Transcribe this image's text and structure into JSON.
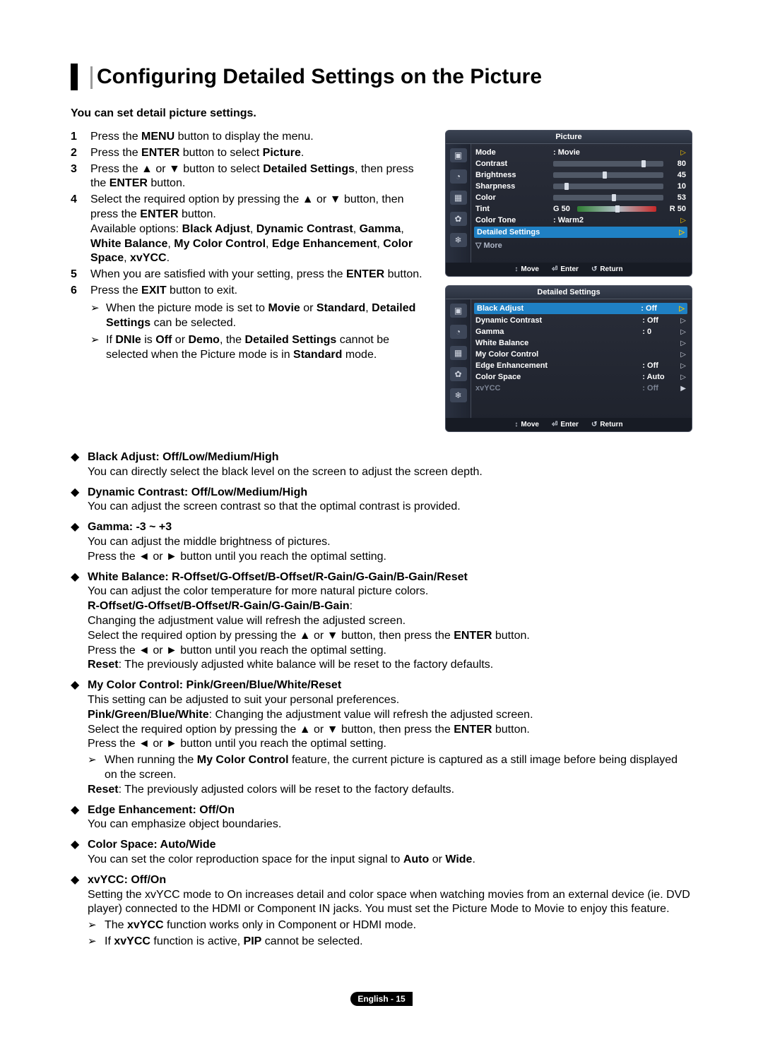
{
  "title": "Configuring Detailed Settings on the Picture",
  "intro": "You can set detail picture settings.",
  "steps": [
    {
      "n": "1",
      "parts": [
        "Press the ",
        [
          "b",
          "MENU"
        ],
        " button to display the menu."
      ]
    },
    {
      "n": "2",
      "parts": [
        "Press the ",
        [
          "b",
          "ENTER"
        ],
        " button to select ",
        [
          "b",
          "Picture"
        ],
        "."
      ]
    },
    {
      "n": "3",
      "parts": [
        "Press the ▲ or ▼ button to select ",
        [
          "b",
          "Detailed Settings"
        ],
        ", then press the ",
        [
          "b",
          "ENTER"
        ],
        " button."
      ]
    },
    {
      "n": "4",
      "parts": [
        "Select the required option by pressing the ▲ or ▼ button, then press the ",
        [
          "b",
          "ENTER"
        ],
        " button.\nAvailable options: ",
        [
          "b",
          "Black Adjust"
        ],
        ", ",
        [
          "b",
          "Dynamic Contrast"
        ],
        ", ",
        [
          "b",
          "Gamma"
        ],
        ", ",
        [
          "b",
          "White Balance"
        ],
        ", ",
        [
          "b",
          "My Color Control"
        ],
        ", ",
        [
          "b",
          "Edge Enhancement"
        ],
        ", ",
        [
          "b",
          "Color Space"
        ],
        ", ",
        [
          "b",
          "xvYCC"
        ],
        "."
      ]
    },
    {
      "n": "5",
      "parts": [
        "When you are satisfied with your setting, press the ",
        [
          "b",
          "ENTER"
        ],
        " button."
      ]
    },
    {
      "n": "6",
      "parts": [
        "Press the ",
        [
          "b",
          "EXIT"
        ],
        " button to exit."
      ]
    }
  ],
  "step_notes": [
    [
      "When the picture mode is set to ",
      [
        "b",
        "Movie"
      ],
      " or ",
      [
        "b",
        "Standard"
      ],
      ", ",
      [
        "b",
        "Detailed Settings"
      ],
      " can be selected."
    ],
    [
      "If ",
      [
        "b",
        "DNIe"
      ],
      " is ",
      [
        "b",
        "Off"
      ],
      " or ",
      [
        "b",
        "Demo"
      ],
      ", the ",
      [
        "b",
        "Detailed Settings"
      ],
      " cannot be selected when the Picture mode is in ",
      [
        "b",
        "Standard"
      ],
      " mode."
    ]
  ],
  "details": [
    {
      "head": "Black Adjust: Off/Low/Medium/High",
      "lines": [
        [
          "You can directly select the black level on the screen to adjust the screen depth."
        ]
      ]
    },
    {
      "head": "Dynamic Contrast: Off/Low/Medium/High",
      "lines": [
        [
          "You can adjust the screen contrast so that the optimal contrast is provided."
        ]
      ]
    },
    {
      "head": "Gamma: -3 ~ +3",
      "lines": [
        [
          "You can adjust the middle brightness of pictures."
        ],
        [
          "Press the ◄ or ► button until you reach the optimal setting."
        ]
      ]
    },
    {
      "head": "White Balance: R-Offset/G-Offset/B-Offset/R-Gain/G-Gain/B-Gain/Reset",
      "lines": [
        [
          "You can adjust the color temperature for more natural picture colors."
        ],
        [
          [
            "b",
            "R-Offset/G-Offset/B-Offset/R-Gain/G-Gain/B-Gain"
          ],
          ":"
        ],
        [
          "Changing the adjustment value will refresh the adjusted screen."
        ],
        [
          "Select the required option by pressing the ▲ or ▼ button, then press the ",
          [
            "b",
            "ENTER"
          ],
          " button."
        ],
        [
          "Press the ◄ or ► button until you reach the optimal setting."
        ],
        [
          [
            "b",
            "Reset"
          ],
          ": The previously adjusted white balance will be reset to the factory defaults."
        ]
      ]
    },
    {
      "head": "My Color Control: Pink/Green/Blue/White/Reset",
      "lines": [
        [
          "This setting can be adjusted to suit your personal preferences."
        ],
        [
          [
            "b",
            "Pink/Green/Blue/White"
          ],
          ": Changing the adjustment value will refresh the adjusted screen."
        ],
        [
          "Select the required option by pressing the ▲ or ▼ button, then press the ",
          [
            "b",
            "ENTER"
          ],
          " button."
        ],
        [
          "Press the ◄ or ► button until you reach the optimal setting."
        ]
      ],
      "notes": [
        [
          "When running the ",
          [
            "b",
            "My Color Control"
          ],
          " feature, the current picture is captured as a still image before being displayed on the screen."
        ]
      ],
      "after": [
        [
          [
            "b",
            "Reset"
          ],
          ": The previously adjusted colors will be reset to the factory defaults."
        ]
      ]
    },
    {
      "head": "Edge Enhancement: Off/On",
      "lines": [
        [
          "You can emphasize object boundaries."
        ]
      ]
    },
    {
      "head": "Color Space: Auto/Wide",
      "lines": [
        [
          "You can set the color reproduction space for the input signal to ",
          [
            "b",
            "Auto"
          ],
          " or ",
          [
            "b",
            "Wide"
          ],
          "."
        ]
      ]
    },
    {
      "head": "xvYCC: Off/On",
      "lines": [
        [
          "Setting the xvYCC mode to On increases detail and color space when watching movies from an external device (ie. DVD player) connected to the HDMI or Component IN jacks. You must set the Picture Mode to Movie to enjoy this feature."
        ]
      ],
      "notes": [
        [
          "The ",
          [
            "b",
            "xvYCC"
          ],
          " function works only in Component or HDMI mode."
        ],
        [
          "If ",
          [
            "b",
            "xvYCC"
          ],
          " function is active, ",
          [
            "b",
            "PIP"
          ],
          " cannot be selected."
        ]
      ]
    }
  ],
  "osd1": {
    "title": "Picture",
    "rows": [
      {
        "label": "Mode",
        "value": ": Movie",
        "type": "arrow"
      },
      {
        "label": "Contrast",
        "type": "slider",
        "pct": 80,
        "num": "80"
      },
      {
        "label": "Brightness",
        "type": "slider",
        "pct": 45,
        "num": "45"
      },
      {
        "label": "Sharpness",
        "type": "slider",
        "pct": 10,
        "num": "10"
      },
      {
        "label": "Color",
        "type": "slider",
        "pct": 53,
        "num": "53"
      },
      {
        "label": "Tint",
        "type": "tint",
        "g": "G  50",
        "r": "R  50"
      },
      {
        "label": "Color Tone",
        "value": ": Warm2",
        "type": "arrow"
      },
      {
        "label": "Detailed Settings",
        "type": "highlight"
      }
    ],
    "more": "▽ More",
    "footer": [
      {
        "ic": "↕",
        "t": "Move"
      },
      {
        "ic": "⏎",
        "t": "Enter"
      },
      {
        "ic": "↺",
        "t": "Return"
      }
    ]
  },
  "osd2": {
    "title": "Detailed Settings",
    "rows": [
      {
        "label": "Black Adjust",
        "value": ": Off",
        "hl": true
      },
      {
        "label": "Dynamic Contrast",
        "value": ": Off"
      },
      {
        "label": "Gamma",
        "value": ": 0"
      },
      {
        "label": "White Balance",
        "value": ""
      },
      {
        "label": "My Color Control",
        "value": ""
      },
      {
        "label": "Edge Enhancement",
        "value": ": Off"
      },
      {
        "label": "Color Space",
        "value": ": Auto"
      },
      {
        "label": "xvYCC",
        "value": ": Off",
        "dim": true
      }
    ],
    "footer": [
      {
        "ic": "↕",
        "t": "Move"
      },
      {
        "ic": "⏎",
        "t": "Enter"
      },
      {
        "ic": "↺",
        "t": "Return"
      }
    ]
  },
  "icons": [
    "▣",
    "◔",
    "▦",
    "✿",
    "❄"
  ],
  "footer_lang": "English - ",
  "footer_page": "15"
}
